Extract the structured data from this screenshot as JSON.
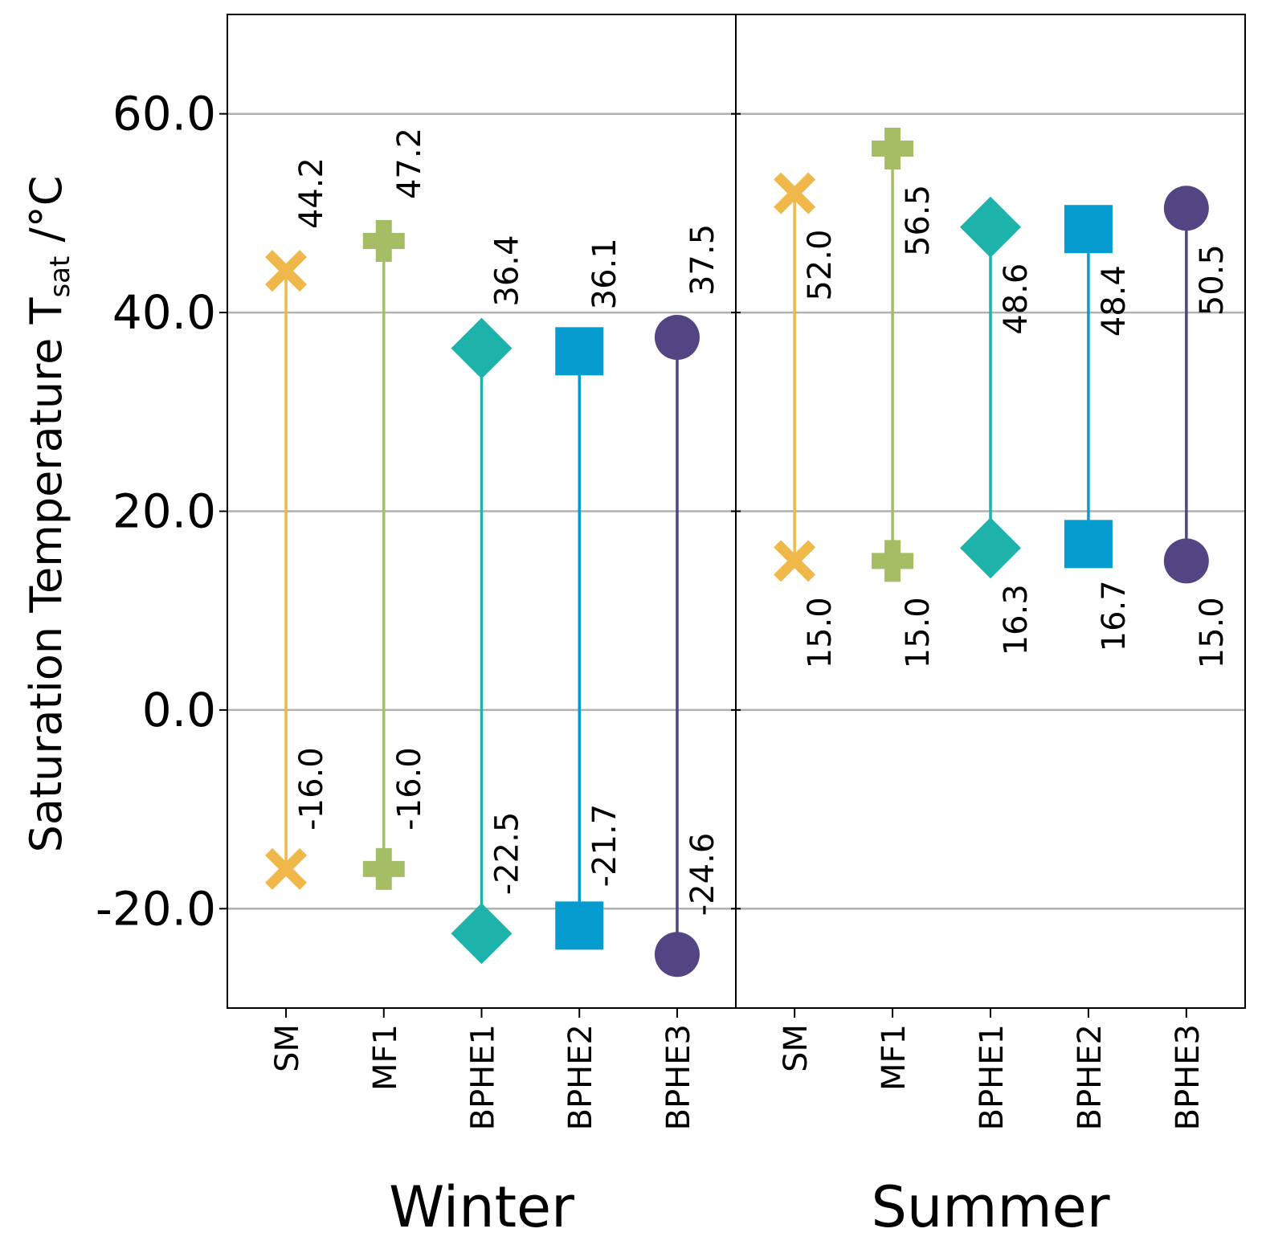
{
  "chart_data": {
    "type": "dumbbell",
    "ylabel_main": "Saturation Temperature T",
    "ylabel_sub": "sat",
    "ylabel_unit": " /°C",
    "ylim": [
      -30,
      70
    ],
    "yticks": [
      -20,
      0,
      20,
      40,
      60
    ],
    "ytick_labels": [
      "-20.0",
      "0.0",
      "20.0",
      "40.0",
      "60.0"
    ],
    "grid": "horizontal",
    "panels": [
      {
        "title": "Winter",
        "categories": [
          "SM",
          "MF1",
          "BPHE1",
          "BPHE2",
          "BPHE3"
        ],
        "high": [
          44.2,
          47.2,
          36.4,
          36.1,
          37.5
        ],
        "low": [
          -16.0,
          -16.0,
          -22.5,
          -21.7,
          -24.6
        ],
        "high_labels": [
          "44.2",
          "47.2",
          "36.4",
          "36.1",
          "37.5"
        ],
        "low_labels": [
          "-16.0",
          "-16.0",
          "-22.5",
          "-21.7",
          "-24.6"
        ]
      },
      {
        "title": "Summer",
        "categories": [
          "SM",
          "MF1",
          "BPHE1",
          "BPHE2",
          "BPHE3"
        ],
        "high": [
          52.0,
          56.5,
          48.6,
          48.4,
          50.5
        ],
        "low": [
          15.0,
          15.0,
          16.3,
          16.7,
          15.0
        ],
        "high_labels": [
          "52.0",
          "56.5",
          "48.6",
          "48.4",
          "50.5"
        ],
        "low_labels": [
          "15.0",
          "15.0",
          "16.3",
          "16.7",
          "15.0"
        ]
      }
    ],
    "series_style": [
      {
        "name": "SM",
        "marker": "x",
        "color": "#f0b84a"
      },
      {
        "name": "MF1",
        "marker": "plus",
        "color": "#a5be65"
      },
      {
        "name": "BPHE1",
        "marker": "diamond",
        "color": "#1eb3aa"
      },
      {
        "name": "BPHE2",
        "marker": "square",
        "color": "#069ccf"
      },
      {
        "name": "BPHE3",
        "marker": "circle",
        "color": "#534584"
      }
    ]
  }
}
